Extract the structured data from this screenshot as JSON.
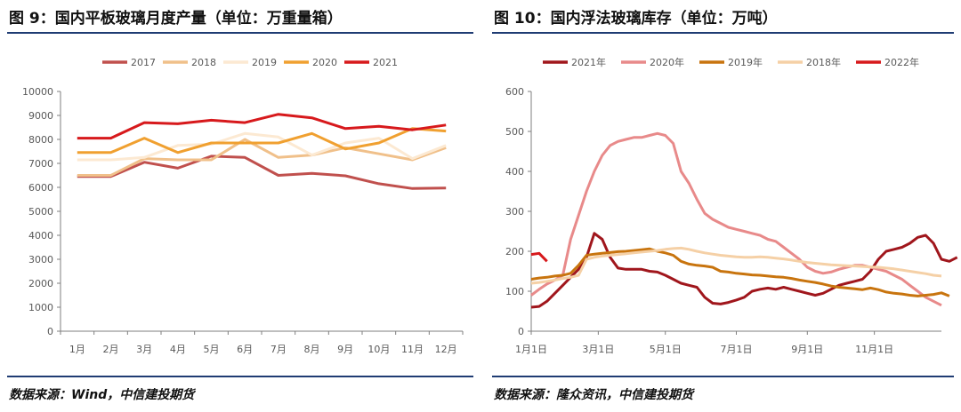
{
  "left": {
    "title": "图 9：国内平板玻璃月度产量（单位：万重量箱）",
    "source": "数据来源：Wind，中信建投期货",
    "chart_data": {
      "type": "line",
      "categories": [
        "1月",
        "2月",
        "3月",
        "4月",
        "5月",
        "6月",
        "7月",
        "8月",
        "9月",
        "10月",
        "11月",
        "12月"
      ],
      "ylim": [
        0,
        10000
      ],
      "yticks": [
        0,
        1000,
        2000,
        3000,
        4000,
        5000,
        6000,
        7000,
        8000,
        9000,
        10000
      ],
      "legend_position": "top",
      "grid": false,
      "series": [
        {
          "name": "2017",
          "color": "#c0504d",
          "values": [
            6450,
            6450,
            7050,
            6800,
            7300,
            7250,
            6500,
            6580,
            6480,
            6150,
            5950,
            5970
          ]
        },
        {
          "name": "2018",
          "color": "#f0c08a",
          "values": [
            6500,
            6500,
            7200,
            7150,
            7150,
            8000,
            7250,
            7350,
            7650,
            7400,
            7150,
            7650
          ]
        },
        {
          "name": "2019",
          "color": "#fce9d2",
          "values": [
            7150,
            7150,
            7250,
            7750,
            7800,
            8250,
            8100,
            7350,
            7850,
            8050,
            7200,
            7750
          ]
        },
        {
          "name": "2020",
          "color": "#f0a030",
          "values": [
            7450,
            7450,
            8050,
            7450,
            7850,
            7850,
            7850,
            8250,
            7600,
            7850,
            8450,
            8350
          ]
        },
        {
          "name": "2021",
          "color": "#d7191c",
          "values": [
            8050,
            8050,
            8700,
            8650,
            8800,
            8700,
            9050,
            8900,
            8450,
            8550,
            8400,
            8600
          ]
        }
      ]
    }
  },
  "right": {
    "title": "图 10：国内浮法玻璃库存（单位：万吨）",
    "source": "数据来源：隆众资讯，中信建投期货",
    "chart_data": {
      "type": "line",
      "x_tick_labels": [
        "1月1日",
        "3月1日",
        "5月1日",
        "7月1日",
        "9月1日",
        "11月1日"
      ],
      "x_tick_weeks": [
        0,
        8.5,
        17,
        26,
        35,
        43.5
      ],
      "x_range_weeks": [
        0,
        52
      ],
      "ylim": [
        0,
        600
      ],
      "yticks": [
        0,
        100,
        200,
        300,
        400,
        500,
        600
      ],
      "legend_position": "top",
      "grid": false,
      "series": [
        {
          "name": "2021年",
          "color": "#a0161c",
          "values": [
            60,
            62,
            75,
            95,
            115,
            135,
            155,
            185,
            245,
            230,
            185,
            158,
            155,
            155,
            155,
            150,
            148,
            140,
            130,
            120,
            115,
            110,
            85,
            70,
            68,
            72,
            78,
            85,
            100,
            105,
            108,
            105,
            110,
            105,
            100,
            95,
            90,
            95,
            105,
            115,
            120,
            125,
            130,
            150,
            180,
            200,
            205,
            210,
            220,
            235,
            240,
            220,
            180,
            175,
            185
          ]
        },
        {
          "name": "2020年",
          "color": "#e88a8a",
          "values": [
            90,
            105,
            118,
            128,
            140,
            230,
            290,
            350,
            400,
            440,
            465,
            475,
            480,
            485,
            485,
            490,
            495,
            490,
            470,
            400,
            370,
            330,
            295,
            280,
            270,
            260,
            255,
            250,
            245,
            240,
            230,
            225,
            210,
            195,
            180,
            160,
            150,
            145,
            148,
            155,
            160,
            165,
            165,
            160,
            155,
            150,
            140,
            130,
            115,
            100,
            85,
            75,
            65
          ]
        },
        {
          "name": "2019年",
          "color": "#c8740e",
          "values": [
            130,
            133,
            135,
            138,
            140,
            145,
            165,
            190,
            193,
            195,
            197,
            199,
            200,
            202,
            204,
            206,
            200,
            196,
            190,
            175,
            168,
            165,
            163,
            160,
            150,
            148,
            145,
            143,
            141,
            140,
            138,
            136,
            135,
            132,
            128,
            125,
            122,
            118,
            113,
            110,
            108,
            106,
            104,
            108,
            104,
            98,
            95,
            93,
            90,
            88,
            90,
            92,
            96,
            88
          ]
        },
        {
          "name": "2018年",
          "color": "#f5d0a6",
          "values": [
            120,
            122,
            125,
            128,
            132,
            135,
            140,
            180,
            185,
            188,
            190,
            192,
            194,
            196,
            198,
            200,
            202,
            205,
            207,
            208,
            205,
            200,
            196,
            193,
            190,
            188,
            186,
            185,
            185,
            186,
            185,
            183,
            181,
            178,
            175,
            172,
            170,
            168,
            166,
            165,
            164,
            163,
            162,
            161,
            160,
            158,
            156,
            153,
            150,
            147,
            144,
            140,
            138
          ]
        },
        {
          "name": "2022年",
          "color": "#d7191c",
          "values": [
            192,
            195,
            175
          ]
        }
      ]
    }
  }
}
